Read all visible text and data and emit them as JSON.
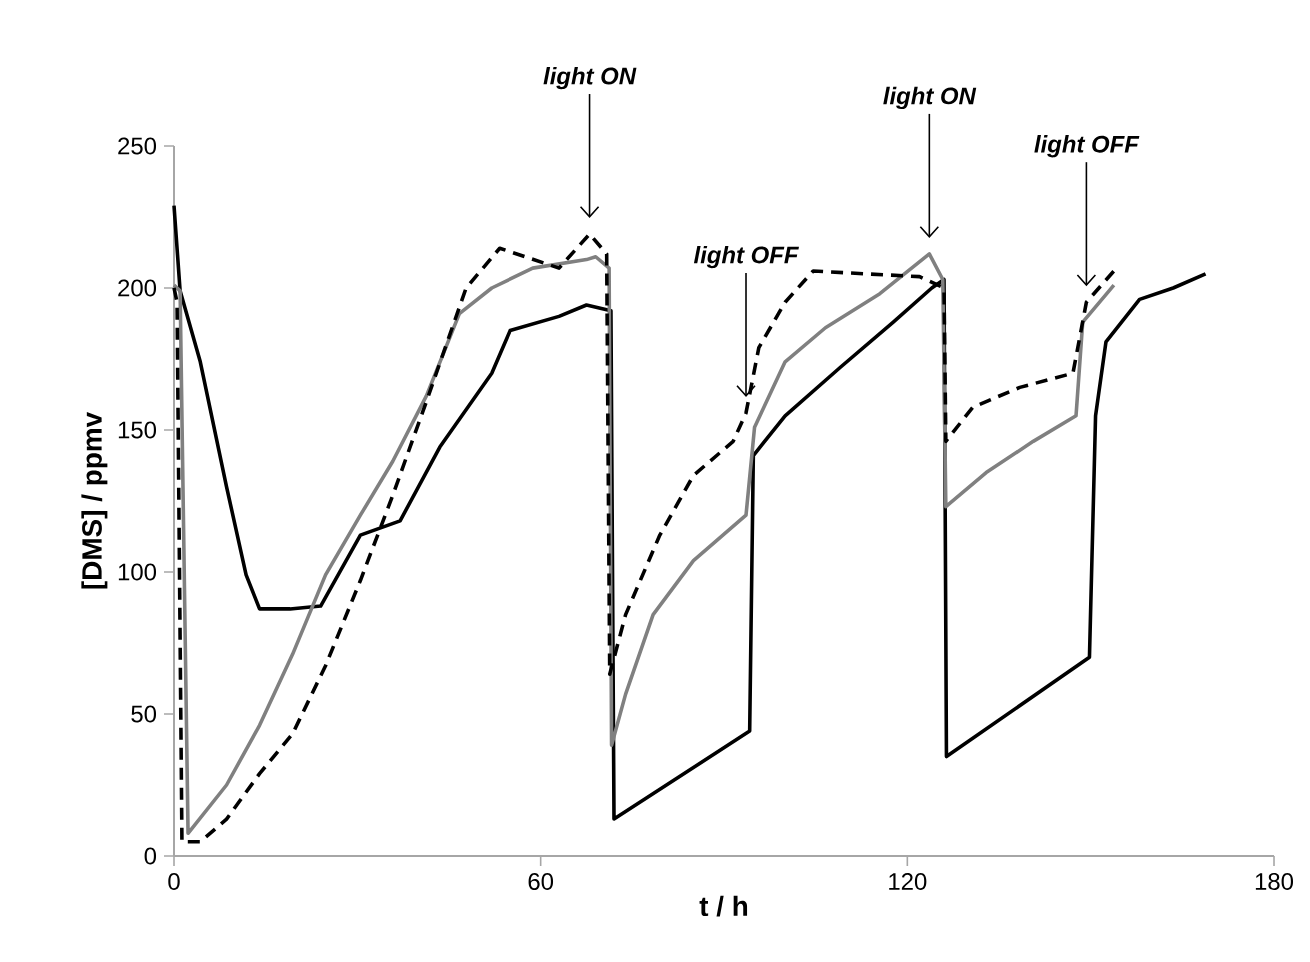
{
  "chart_data": {
    "type": "line",
    "xlabel": "t / h",
    "ylabel": "[DMS] / ppmv",
    "xlim": [
      0,
      180
    ],
    "xticks": [
      0,
      60,
      120,
      180
    ],
    "ylim": [
      0,
      250
    ],
    "yticks": [
      0,
      50,
      100,
      150,
      200,
      250
    ],
    "series": [
      {
        "color": "#000000",
        "line_style": "solid",
        "x": [
          0,
          1,
          4.3,
          8.6,
          11.8,
          14,
          19,
          24,
          30.5,
          37,
          43.5,
          52,
          55,
          63,
          67.5,
          71.5,
          72,
          94.2,
          94.8,
          100,
          109,
          117.7,
          124,
          126,
          126.4,
          149.8,
          150.8,
          152.5,
          158,
          163.5,
          168.8
        ],
        "values": [
          229,
          199,
          174,
          130,
          99,
          87,
          87,
          88,
          113,
          118,
          144,
          170,
          185,
          190,
          194,
          192,
          13,
          44,
          141,
          155,
          172,
          188,
          200,
          203,
          35,
          70,
          155,
          181,
          196,
          200,
          205
        ]
      },
      {
        "color": "#808080",
        "line_style": "solid",
        "x": [
          0,
          1,
          2.3,
          8.6,
          14,
          19.4,
          24.8,
          30.5,
          35.8,
          41.3,
          46.7,
          52,
          58.7,
          67.5,
          69,
          71.2,
          71.6,
          73.9,
          78.4,
          85,
          93.6,
          95,
          100,
          106.6,
          115.5,
          123.6,
          125.8,
          126.3,
          132.9,
          140.6,
          147.6,
          148.7,
          153.8
        ],
        "values": [
          201,
          199,
          8,
          25,
          46,
          71,
          99,
          120,
          139,
          162,
          191,
          200,
          207,
          210,
          211,
          207,
          39,
          57,
          85,
          104,
          120,
          151,
          174,
          186,
          198,
          212,
          203,
          123,
          135,
          146,
          155,
          188,
          201
        ]
      },
      {
        "color": "#000000",
        "line_style": "dashed",
        "x": [
          0,
          0.5,
          1.3,
          4.3,
          8.6,
          14,
          19.4,
          24.8,
          30.5,
          35.8,
          41.3,
          47.8,
          53.3,
          63,
          68,
          70.8,
          71.3,
          73.9,
          79.5,
          85,
          91.5,
          93.6,
          95.7,
          100,
          104.6,
          113,
          122,
          126,
          126.3,
          130.7,
          138.4,
          147.1,
          149.3,
          153.8
        ],
        "values": [
          200,
          195,
          5,
          5,
          13,
          29,
          43,
          67,
          97,
          127,
          160,
          200,
          214,
          207,
          219,
          212,
          64,
          85,
          113,
          134,
          146,
          156,
          179,
          195,
          206,
          205,
          204,
          200,
          146,
          158,
          165,
          170,
          195,
          206
        ]
      }
    ],
    "annotations": [
      {
        "text": "light ON",
        "x": 68,
        "y": 219
      },
      {
        "text": "light OFF",
        "x": 93.6,
        "y": 156
      },
      {
        "text": "light ON",
        "x": 123.6,
        "y": 212
      },
      {
        "text": "light OFF",
        "x": 149.3,
        "y": 195
      }
    ]
  }
}
